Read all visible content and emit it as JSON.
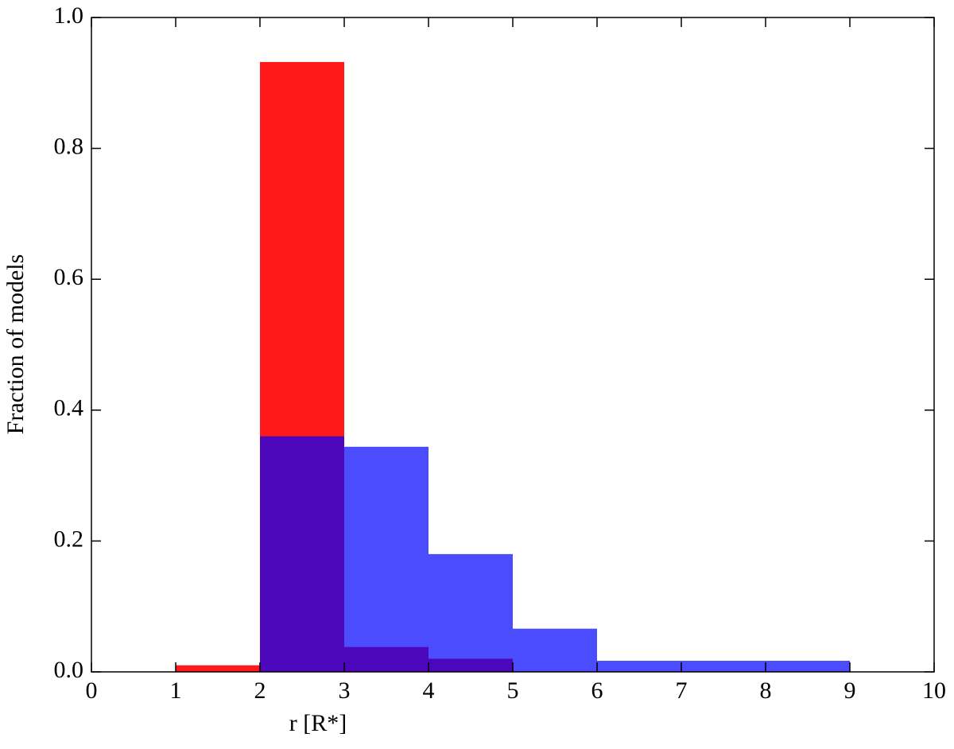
{
  "chart_data": {
    "type": "histogram",
    "xlabel": "r [R*]",
    "ylabel": "Fraction of models",
    "bins": [
      0,
      1,
      2,
      3,
      4,
      5,
      6,
      7,
      8,
      9,
      10
    ],
    "series": [
      {
        "color": "#ff0000",
        "alpha": 0.9,
        "values": [
          0,
          0.01,
          0.932,
          0.038,
          0.02,
          0,
          0,
          0,
          0,
          0
        ]
      },
      {
        "color": "#0000ff",
        "alpha": 0.7,
        "values": [
          0,
          0,
          0.36,
          0.344,
          0.18,
          0.066,
          0.017,
          0.017,
          0.017,
          0
        ]
      }
    ],
    "xlim": [
      0,
      10
    ],
    "xticks": [
      0,
      1,
      2,
      3,
      4,
      5,
      6,
      7,
      8,
      9,
      10
    ],
    "ylim": [
      0,
      1
    ],
    "yticks": [
      {
        "value": 0,
        "label": "0.0"
      },
      {
        "value": 0.2,
        "label": "0.2"
      },
      {
        "value": 0.4,
        "label": "0.4"
      },
      {
        "value": 0.6,
        "label": "0.6"
      },
      {
        "value": 0.8,
        "label": "0.8"
      },
      {
        "value": 1,
        "label": "1.0"
      }
    ]
  }
}
